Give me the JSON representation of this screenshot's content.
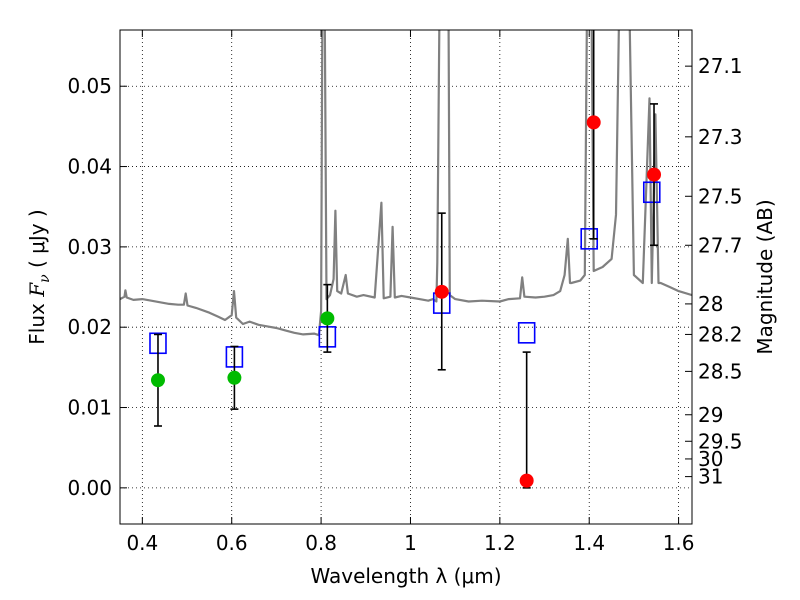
{
  "chart_data": {
    "type": "scatter",
    "xlabel": "Wavelength  λ (μm)",
    "ylabel_text": "Flux ",
    "ylabel_symbol": "F",
    "ylabel_subscript": "ν",
    "ylabel_unit": " ( μJy )",
    "y2label": "Magnitude (AB)",
    "xlim": [
      0.35,
      1.63
    ],
    "ylim": [
      -0.0045,
      0.057
    ],
    "grid": true,
    "x_ticks": [
      {
        "value": 0.4,
        "label": "0.4"
      },
      {
        "value": 0.6,
        "label": "0.6"
      },
      {
        "value": 0.8,
        "label": "0.8"
      },
      {
        "value": 1.0,
        "label": "1"
      },
      {
        "value": 1.2,
        "label": "1.2"
      },
      {
        "value": 1.4,
        "label": "1.4"
      },
      {
        "value": 1.6,
        "label": "1.6"
      }
    ],
    "y_ticks": [
      {
        "value": 0.0,
        "label": "0.00"
      },
      {
        "value": 0.01,
        "label": "0.01"
      },
      {
        "value": 0.02,
        "label": "0.02"
      },
      {
        "value": 0.03,
        "label": "0.03"
      },
      {
        "value": 0.04,
        "label": "0.04"
      },
      {
        "value": 0.05,
        "label": "0.05"
      }
    ],
    "mag_ticks": [
      {
        "label": "27.1",
        "flux": 0.0525
      },
      {
        "label": "27.3",
        "flux": 0.0437
      },
      {
        "label": "27.5",
        "flux": 0.0363
      },
      {
        "label": "27.7",
        "flux": 0.0302
      },
      {
        "label": "28",
        "flux": 0.0229
      },
      {
        "label": "28.2",
        "flux": 0.0191
      },
      {
        "label": "28.5",
        "flux": 0.0145
      },
      {
        "label": "29",
        "flux": 0.0091
      },
      {
        "label": "29.5",
        "flux": 0.0058
      },
      {
        "label": "30",
        "flux": 0.0036
      },
      {
        "label": "31",
        "flux": 0.0014
      }
    ],
    "series": [
      {
        "name": "detections (green)",
        "color": "#00bb00",
        "points": [
          {
            "x": 0.435,
            "y": 0.0134,
            "err_low": 0.0057,
            "err_high": 0.0057
          },
          {
            "x": 0.606,
            "y": 0.0137,
            "err_low": 0.0039,
            "err_high": 0.0039
          },
          {
            "x": 0.814,
            "y": 0.0211,
            "err_low": 0.0042,
            "err_high": 0.0042
          }
        ]
      },
      {
        "name": "detections (red)",
        "color": "#ff0000",
        "points": [
          {
            "x": 1.07,
            "y": 0.0244,
            "err_low": 0.0097,
            "err_high": 0.0098
          },
          {
            "x": 1.26,
            "y": 0.0009,
            "err_low": 0.0009,
            "err_high": 0.016
          },
          {
            "x": 1.41,
            "y": 0.0455,
            "err_low": 0.0145,
            "err_high": 0.0145
          },
          {
            "x": 1.545,
            "y": 0.039,
            "err_low": 0.0088,
            "err_high": 0.0088
          }
        ]
      },
      {
        "name": "model photometry",
        "color": "#0000ff",
        "marker": "square",
        "points": [
          {
            "x": 0.435,
            "y": 0.018
          },
          {
            "x": 0.606,
            "y": 0.0163
          },
          {
            "x": 0.814,
            "y": 0.0188
          },
          {
            "x": 1.07,
            "y": 0.023
          },
          {
            "x": 1.26,
            "y": 0.0193
          },
          {
            "x": 1.4,
            "y": 0.031
          },
          {
            "x": 1.54,
            "y": 0.0368
          }
        ]
      }
    ],
    "spectrum": {
      "name": "model spectrum",
      "color": "#808080",
      "points": [
        [
          0.35,
          0.0235
        ],
        [
          0.36,
          0.0238
        ],
        [
          0.362,
          0.0246
        ],
        [
          0.365,
          0.0237
        ],
        [
          0.38,
          0.0234
        ],
        [
          0.4,
          0.0235
        ],
        [
          0.42,
          0.0233
        ],
        [
          0.44,
          0.0231
        ],
        [
          0.46,
          0.0229
        ],
        [
          0.48,
          0.0228
        ],
        [
          0.493,
          0.0228
        ],
        [
          0.497,
          0.0242
        ],
        [
          0.501,
          0.0227
        ],
        [
          0.52,
          0.0224
        ],
        [
          0.55,
          0.0218
        ],
        [
          0.57,
          0.0213
        ],
        [
          0.585,
          0.0209
        ],
        [
          0.6,
          0.0215
        ],
        [
          0.605,
          0.0245
        ],
        [
          0.61,
          0.0212
        ],
        [
          0.625,
          0.0204
        ],
        [
          0.64,
          0.0207
        ],
        [
          0.66,
          0.0203
        ],
        [
          0.68,
          0.0201
        ],
        [
          0.7,
          0.0199
        ],
        [
          0.72,
          0.0196
        ],
        [
          0.74,
          0.0193
        ],
        [
          0.76,
          0.0191
        ],
        [
          0.785,
          0.0192
        ],
        [
          0.795,
          0.019
        ],
        [
          0.8,
          0.022
        ],
        [
          0.803,
          0.06
        ],
        [
          0.808,
          0.06
        ],
        [
          0.812,
          0.0235
        ],
        [
          0.82,
          0.024
        ],
        [
          0.828,
          0.026
        ],
        [
          0.832,
          0.0345
        ],
        [
          0.836,
          0.0245
        ],
        [
          0.845,
          0.0242
        ],
        [
          0.855,
          0.0265
        ],
        [
          0.86,
          0.0242
        ],
        [
          0.88,
          0.0238
        ],
        [
          0.895,
          0.024
        ],
        [
          0.92,
          0.0237
        ],
        [
          0.935,
          0.0355
        ],
        [
          0.94,
          0.0236
        ],
        [
          0.955,
          0.0238
        ],
        [
          0.96,
          0.0325
        ],
        [
          0.965,
          0.0237
        ],
        [
          0.98,
          0.0239
        ],
        [
          1.0,
          0.0237
        ],
        [
          1.02,
          0.0235
        ],
        [
          1.04,
          0.0233
        ],
        [
          1.05,
          0.0235
        ],
        [
          1.058,
          0.0232
        ],
        [
          1.06,
          0.028
        ],
        [
          1.065,
          0.06
        ],
        [
          1.085,
          0.06
        ],
        [
          1.088,
          0.024
        ],
        [
          1.1,
          0.0235
        ],
        [
          1.13,
          0.0232
        ],
        [
          1.16,
          0.0233
        ],
        [
          1.2,
          0.0232
        ],
        [
          1.22,
          0.0235
        ],
        [
          1.245,
          0.0236
        ],
        [
          1.25,
          0.0262
        ],
        [
          1.255,
          0.0238
        ],
        [
          1.28,
          0.0237
        ],
        [
          1.3,
          0.0238
        ],
        [
          1.32,
          0.024
        ],
        [
          1.335,
          0.0245
        ],
        [
          1.345,
          0.0265
        ],
        [
          1.352,
          0.031
        ],
        [
          1.357,
          0.0255
        ],
        [
          1.36,
          0.0255
        ],
        [
          1.38,
          0.0258
        ],
        [
          1.39,
          0.0265
        ],
        [
          1.395,
          0.06
        ],
        [
          1.405,
          0.06
        ],
        [
          1.41,
          0.027
        ],
        [
          1.43,
          0.0275
        ],
        [
          1.45,
          0.0285
        ],
        [
          1.46,
          0.034
        ],
        [
          1.467,
          0.06
        ],
        [
          1.49,
          0.06
        ],
        [
          1.5,
          0.0265
        ],
        [
          1.52,
          0.0255
        ],
        [
          1.535,
          0.0485
        ],
        [
          1.54,
          0.0255
        ],
        [
          1.548,
          0.0465
        ],
        [
          1.555,
          0.0255
        ],
        [
          1.56,
          0.0255
        ],
        [
          1.58,
          0.025
        ],
        [
          1.6,
          0.0245
        ],
        [
          1.63,
          0.024
        ]
      ]
    }
  }
}
